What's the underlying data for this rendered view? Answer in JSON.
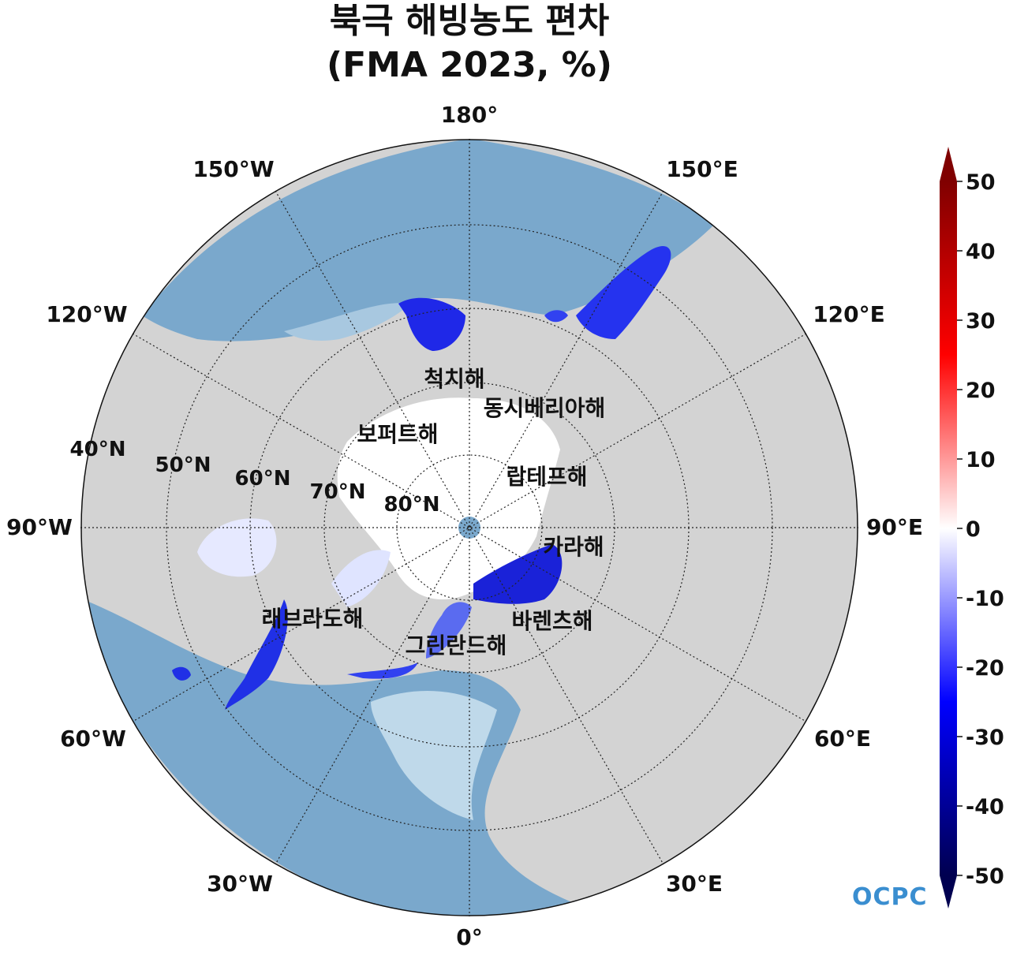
{
  "title": {
    "line1": "북극 해빙농도 편차",
    "line2": "(FMA 2023, %)"
  },
  "map": {
    "projection": "north-polar-stereographic",
    "longitude_labels": [
      "180°",
      "150°E",
      "120°E",
      "90°E",
      "60°E",
      "30°E",
      "0°",
      "30°W",
      "60°W",
      "90°W",
      "120°W",
      "150°W"
    ],
    "latitude_labels": [
      "40°N",
      "50°N",
      "60°N",
      "70°N",
      "80°N"
    ],
    "sea_labels": [
      "척치해",
      "동시베리아해",
      "보퍼트해",
      "랍테프해",
      "카라해",
      "바렌츠해",
      "래브라도해",
      "그린란드해"
    ],
    "colors": {
      "land": "#d3d3d3",
      "ocean": "#7aa8cc",
      "ocean_shallow": "#bfd9ea",
      "ice_no_anomaly": "#ffffff",
      "negative_anomaly": "#0000ff",
      "positive_anomaly": "#ff0000"
    }
  },
  "colorbar": {
    "ticks": [
      "50",
      "40",
      "30",
      "20",
      "10",
      "0",
      "-10",
      "-20",
      "-30",
      "-40",
      "-50"
    ],
    "min": -50,
    "max": 50,
    "colormap": "seismic (blue-white-red)",
    "extend": "both"
  },
  "logo": {
    "text": "OCPC",
    "color": "#3a8ed0"
  }
}
